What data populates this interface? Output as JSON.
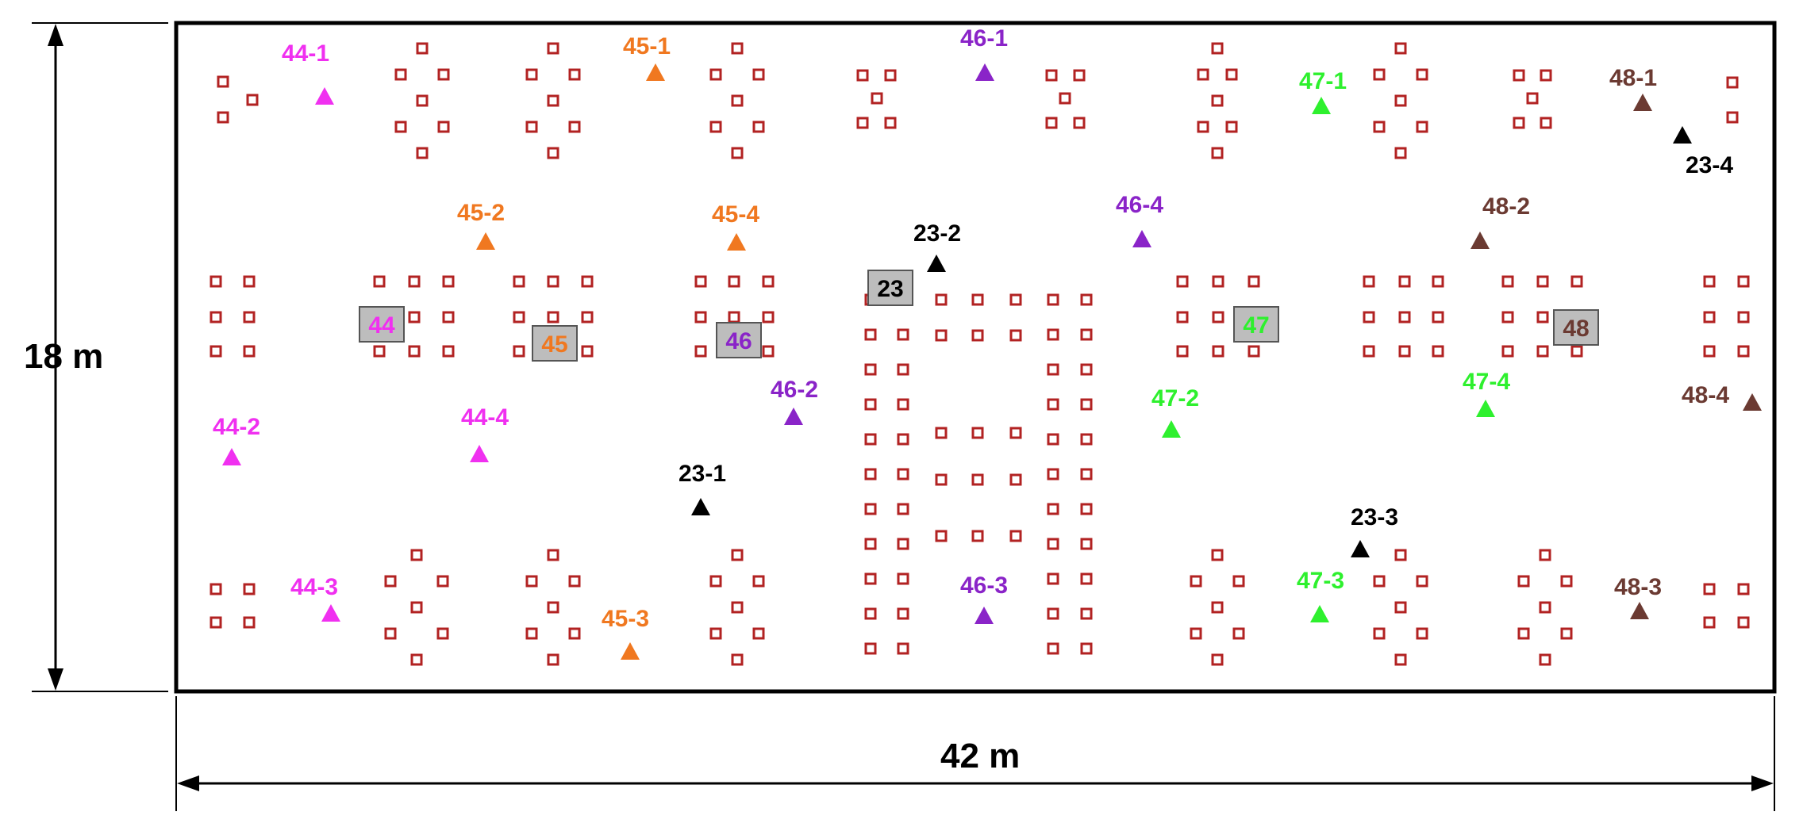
{
  "dimensions": {
    "height_label": "18 m",
    "width_label": "42 m"
  },
  "colors": {
    "marker": "#b22222",
    "box_fill": "#bdbdbd",
    "border": "#000000",
    "group_44": "#f030f0",
    "group_45": "#f07820",
    "group_46": "#8a24c8",
    "group_47": "#2ef02e",
    "group_48": "#6b3a32",
    "group_23": "#000000"
  },
  "boxes": [
    {
      "id": "box-44",
      "label": "44",
      "group": "44"
    },
    {
      "id": "box-45",
      "label": "45",
      "group": "45"
    },
    {
      "id": "box-46",
      "label": "46",
      "group": "46"
    },
    {
      "id": "box-23",
      "label": "23",
      "group": "23"
    },
    {
      "id": "box-47",
      "label": "47",
      "group": "47"
    },
    {
      "id": "box-48",
      "label": "48",
      "group": "48"
    }
  ],
  "points": [
    {
      "label": "44-1",
      "group": "44"
    },
    {
      "label": "44-2",
      "group": "44"
    },
    {
      "label": "44-3",
      "group": "44"
    },
    {
      "label": "44-4",
      "group": "44"
    },
    {
      "label": "45-1",
      "group": "45"
    },
    {
      "label": "45-2",
      "group": "45"
    },
    {
      "label": "45-3",
      "group": "45"
    },
    {
      "label": "45-4",
      "group": "45"
    },
    {
      "label": "46-1",
      "group": "46"
    },
    {
      "label": "46-2",
      "group": "46"
    },
    {
      "label": "46-3",
      "group": "46"
    },
    {
      "label": "46-4",
      "group": "46"
    },
    {
      "label": "47-1",
      "group": "47"
    },
    {
      "label": "47-2",
      "group": "47"
    },
    {
      "label": "47-3",
      "group": "47"
    },
    {
      "label": "47-4",
      "group": "47"
    },
    {
      "label": "48-1",
      "group": "48"
    },
    {
      "label": "48-2",
      "group": "48"
    },
    {
      "label": "48-3",
      "group": "48"
    },
    {
      "label": "48-4",
      "group": "48"
    },
    {
      "label": "23-1",
      "group": "23"
    },
    {
      "label": "23-2",
      "group": "23"
    },
    {
      "label": "23-3",
      "group": "23"
    },
    {
      "label": "23-4",
      "group": "23"
    }
  ]
}
